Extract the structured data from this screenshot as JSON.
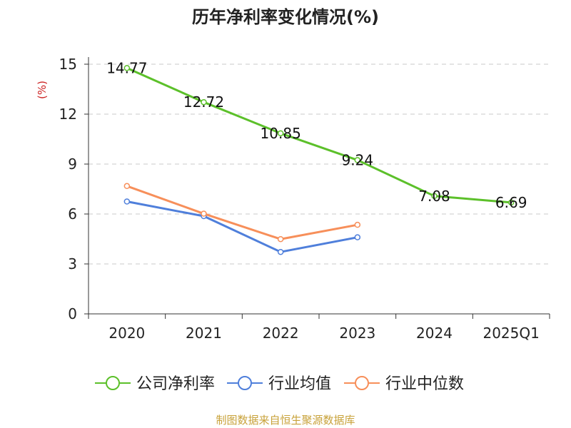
{
  "chart_data": {
    "type": "line",
    "title": "历年净利率变化情况(%)",
    "ylabel": "(%)",
    "xlabel": "",
    "categories": [
      "2020",
      "2021",
      "2022",
      "2023",
      "2024",
      "2025Q1"
    ],
    "ylim": [
      0,
      15
    ],
    "yticks": [
      0,
      3,
      6,
      9,
      12,
      15
    ],
    "grid": true,
    "legend_position": "bottom",
    "series": [
      {
        "name": "公司净利率",
        "values": [
          14.77,
          12.72,
          10.85,
          9.24,
          7.08,
          6.69
        ],
        "value_labels": [
          "14.77",
          "12.72",
          "10.85",
          "9.24",
          "7.08",
          "6.69"
        ],
        "color": "#5cc02a"
      },
      {
        "name": "行业均值",
        "values": [
          6.75,
          5.87,
          3.72,
          4.6,
          null,
          null
        ],
        "color": "#4f7fdb"
      },
      {
        "name": "行业中位数",
        "values": [
          7.68,
          6.02,
          4.49,
          5.35,
          null,
          null
        ],
        "color": "#f78f5a"
      }
    ]
  },
  "footer": {
    "source": "制图数据来自恒生聚源数据库"
  },
  "colors": {
    "axis_title": "#cc2222",
    "grid": "#c8c8c8",
    "axis": "#333333"
  }
}
